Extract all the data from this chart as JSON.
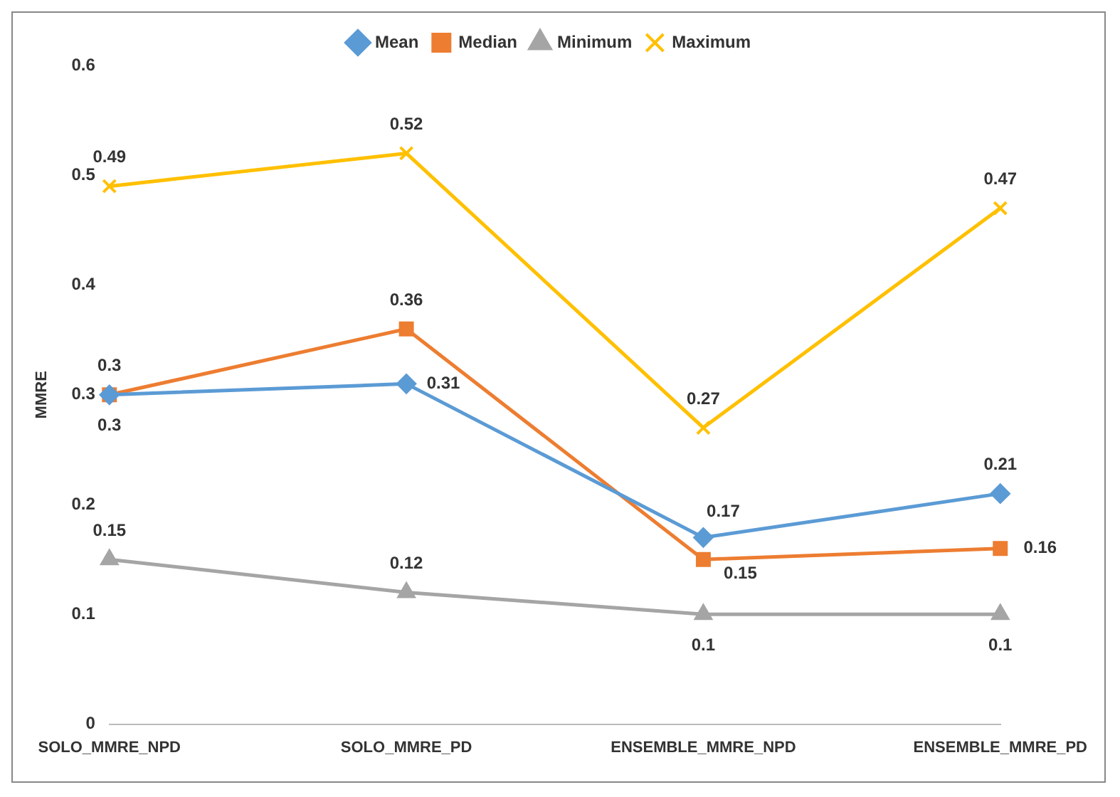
{
  "chart_data": {
    "type": "line",
    "ylabel": "MMRE",
    "categories": [
      "SOLO_MMRE_NPD",
      "SOLO_MMRE_PD",
      "ENSEMBLE_MMRE_NPD",
      "ENSEMBLE_MMRE_PD"
    ],
    "series": [
      {
        "name": "Mean",
        "color": "#5b9bd5",
        "marker": "diamond",
        "values": [
          0.3,
          0.31,
          0.17,
          0.21
        ]
      },
      {
        "name": "Median",
        "color": "#ed7d31",
        "marker": "square",
        "values": [
          0.3,
          0.36,
          0.15,
          0.16
        ]
      },
      {
        "name": "Minimum",
        "color": "#a5a5a5",
        "marker": "triangle",
        "values": [
          0.15,
          0.12,
          0.1,
          0.1
        ]
      },
      {
        "name": "Maximum",
        "color": "#ffc000",
        "marker": "cross",
        "values": [
          0.49,
          0.52,
          0.27,
          0.47
        ]
      }
    ],
    "ylim": [
      0,
      0.6
    ],
    "yticks": [
      0,
      0.1,
      0.2,
      0.3,
      0.4,
      0.5,
      0.6
    ],
    "grid": false,
    "legend": "top",
    "data_labels": true
  }
}
